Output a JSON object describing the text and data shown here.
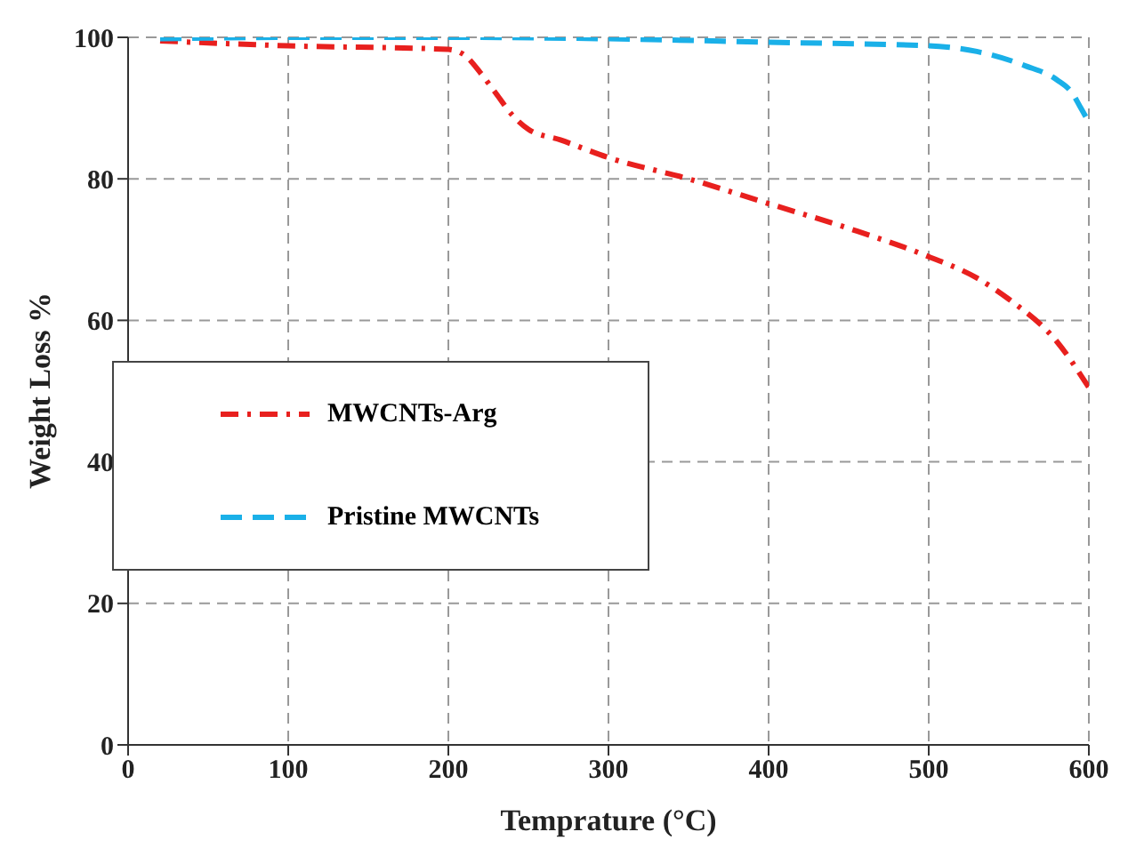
{
  "chart_data": {
    "type": "line",
    "xlabel": "Temprature (°C)",
    "ylabel": "Weight Loss %",
    "xlim": [
      0,
      600
    ],
    "xticks": [
      0,
      100,
      200,
      300,
      400,
      500,
      600
    ],
    "ylim": [
      0,
      100
    ],
    "yticks": [
      0,
      20,
      40,
      60,
      80,
      100
    ],
    "grid": true,
    "legend": "left",
    "marker": "none",
    "series": [
      {
        "name": "MWCNTs-Arg",
        "color": "#e8201e",
        "line_style": "dashdot",
        "x": [
          20,
          100,
          200,
          210,
          220,
          230,
          240,
          250,
          270,
          300,
          350,
          400,
          450,
          500,
          530,
          550,
          580,
          600
        ],
        "values": [
          99.5,
          98.8,
          98.3,
          97.5,
          95,
          92,
          89,
          87,
          85.5,
          83,
          80,
          76.5,
          73,
          69,
          66,
          63,
          57,
          50.5
        ]
      },
      {
        "name": "Pristine MWCNTs",
        "color": "#1ab0e8",
        "line_style": "dashed",
        "x": [
          20,
          100,
          200,
          300,
          400,
          500,
          530,
          560,
          580,
          590,
          595,
          600
        ],
        "values": [
          99.8,
          100,
          100,
          99.8,
          99.3,
          98.8,
          98,
          96,
          94,
          92,
          90,
          88
        ]
      }
    ]
  }
}
